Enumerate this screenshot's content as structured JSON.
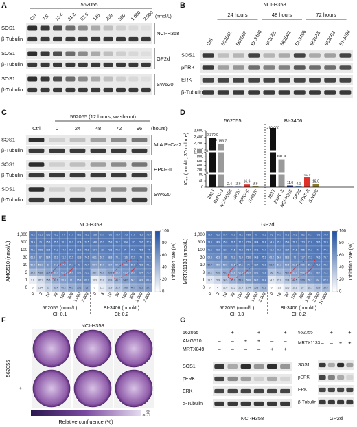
{
  "panel_a": {
    "letter": "A",
    "drug": "562055",
    "unit": "(nmol/L)",
    "lanes": [
      "Ctrl",
      "7.8",
      "15.6",
      "31.3",
      "62.5",
      "125",
      "250",
      "500",
      "1,000",
      "2,000"
    ],
    "blots": [
      {
        "cell_line": "NCI-H358",
        "proteins": [
          "SOS1",
          "β-Tubulin"
        ]
      },
      {
        "cell_line": "GP2d",
        "proteins": [
          "SOS1",
          "β-Tubulin"
        ]
      },
      {
        "cell_line": "SW620",
        "proteins": [
          "SOS1",
          "β-Tubulin"
        ]
      }
    ]
  },
  "panel_b": {
    "letter": "B",
    "cell_line": "NCI-H358",
    "groups": [
      "24 hours",
      "48 hours",
      "72 hours"
    ],
    "lanes": [
      "Ctrl",
      "562055",
      "562092",
      "BI-3406",
      "562055",
      "562092",
      "BI-3406",
      "562055",
      "562092",
      "BI-3406"
    ],
    "proteins": [
      "SOS1",
      "pERK",
      "ERK",
      "β-Tubulin"
    ]
  },
  "panel_c": {
    "letter": "C",
    "header": "562055 (12 hours, wash-out)",
    "unit": "(hours)",
    "lanes": [
      "Ctrl",
      "0",
      "24",
      "48",
      "72",
      "96"
    ],
    "blots": [
      {
        "cell_line": "MIA PaCa-2",
        "proteins": [
          "SOS1",
          "β-Tubulin"
        ]
      },
      {
        "cell_line": "HPAF-II",
        "proteins": [
          "SOS1",
          "β-Tubulin"
        ]
      },
      {
        "cell_line": "SW620",
        "proteins": [
          "SOS1",
          "β-Tubulin"
        ]
      }
    ]
  },
  "panel_d": {
    "letter": "D",
    "type": "bar",
    "ylabel": "IC₅₀ (nmol/L, 3D culture)",
    "segments": [
      {
        "ylim": [
          0,
          80
        ],
        "yticks": [
          0,
          40,
          80
        ]
      },
      {
        "ylim": [
          100,
          1000
        ],
        "yticks": [
          200,
          400,
          600,
          800,
          {
            "value": 1000,
            "label": "1,000"
          }
        ]
      },
      {
        "ylim": [
          2000,
          2600
        ],
        "yticks": [
          {
            "value": 2000,
            "label": "2,000"
          },
          {
            "value": 2200,
            "label": "2,200"
          },
          {
            "value": 2400,
            "label": "2,400"
          },
          {
            "value": 2600,
            "label": "2,600"
          }
        ]
      }
    ],
    "groups": [
      {
        "title": "562055",
        "categories": [
          "293T",
          "BxPC-3",
          "NCI-H358",
          "GP2d",
          "HPAF-II",
          "SW620"
        ],
        "colors": [
          "#111111",
          "#9a9a9a",
          "#1b2a7a",
          "#5b8fc9",
          "#e0302a",
          "#8a7a2a"
        ],
        "values": [
          2370.0,
          2193.7,
          2.4,
          2.9,
          16.9,
          3.9
        ],
        "value_labels": [
          "2,370.0",
          "2,193.7",
          "2.4",
          "2.9",
          "16.9",
          "3.9"
        ]
      },
      {
        "title": "BI-3406",
        "categories": [
          "293T",
          "BxPC-3",
          "NCI-H358",
          "GP2d",
          "HPAF-II",
          "SW620"
        ],
        "colors": [
          "#111111",
          "#9a9a9a",
          "#1b2a7a",
          "#5b8fc9",
          "#e0302a",
          "#8a7a2a"
        ],
        "values": [
          10000,
          691.9,
          11.0,
          4.1,
          61.9,
          18.0
        ],
        "value_labels": [
          ">10,000",
          "691.9",
          "11.0",
          "4.1",
          "61.9",
          "18.0"
        ]
      }
    ]
  },
  "panel_e": {
    "letter": "E",
    "colorbar_label": "Inhibition rate (%)",
    "colorbar_lim": [
      0,
      100
    ],
    "colorbar_ticks": [
      0,
      20,
      40,
      60,
      80,
      100
    ],
    "heatmaps": [
      {
        "title": "NCI-H358",
        "ylabel": "AMG510 (nmol/L)",
        "rows": [
          "1,000",
          "300",
          "100",
          "30",
          "10",
          "3",
          "1",
          "0"
        ],
        "drugs": [
          {
            "name": "562055 (nmol/L)",
            "ci": "CI: 0.1",
            "columns": [
              "0",
              "3",
              "10",
              "30",
              "100",
              "300",
              "1,000",
              "3,000"
            ]
          },
          {
            "name": "BI-3406 (nmol/L)",
            "ci": "CI: 0.2",
            "columns": [
              "0",
              "3",
              "10",
              "30",
              "100",
              "300",
              "1,000",
              "3,000"
            ]
          }
        ],
        "values": [
          [
            75.2,
            75.1,
            76.6,
            76.5,
            77.0,
            77.9,
            78.1,
            78.3,
            75.6,
            75.9,
            76.2,
            76.6,
            77.3,
            77.8,
            78.2,
            78.6
          ],
          [
            74.6,
            74.0,
            75.5,
            75.6,
            76.1,
            76.9,
            77.4,
            77.5,
            74.8,
            75.5,
            75.8,
            76.2,
            76.4,
            77.0,
            77.6,
            77.9
          ],
          [
            72.1,
            72.8,
            73.5,
            74.2,
            74.9,
            75.6,
            76.2,
            76.8,
            72.4,
            73.0,
            73.6,
            74.3,
            75.0,
            75.8,
            76.5,
            77.0
          ],
          [
            66.3,
            67.0,
            68.4,
            69.9,
            71.2,
            72.5,
            73.8,
            74.6,
            66.1,
            67.5,
            68.8,
            70.1,
            71.6,
            72.9,
            74.0,
            75.2
          ],
          [
            56.8,
            58.1,
            61.0,
            64.2,
            67.5,
            70.1,
            72.0,
            73.4,
            55.4,
            57.9,
            60.7,
            63.9,
            66.8,
            69.5,
            71.8,
            73.1
          ],
          [
            39.6,
            43.8,
            52.4,
            57.7,
            62.9,
            66.8,
            70.2,
            72.5,
            38.7,
            42.6,
            50.9,
            56.3,
            61.5,
            65.8,
            69.4,
            71.9
          ],
          [
            9.6,
            20.1,
            35.5,
            47.1,
            55.4,
            61.0,
            65.8,
            69.3,
            10.3,
            19.8,
            33.9,
            45.7,
            54.2,
            60.1,
            64.9,
            68.6
          ],
          [
            0,
            13.4,
            25.0,
            32.4,
            40.2,
            46.2,
            50.1,
            53.0,
            0,
            11.1,
            22.9,
            31.5,
            39.8,
            46.9,
            51.2,
            54.7
          ]
        ]
      },
      {
        "title": "GP2d",
        "ylabel": "MRTX1133 (nmol/L)",
        "rows": [
          "1,000",
          "300",
          "100",
          "30",
          "10",
          "3",
          "1",
          "0"
        ],
        "drugs": [
          {
            "name": "562055 (nmol/L)",
            "ci": "CI: 0.3",
            "columns": [
              "0",
              "3",
              "10",
              "30",
              "100",
              "300",
              "1,000",
              "3,000"
            ]
          },
          {
            "name": "BI-3406 (nmol/L)",
            "ci": "CI: 0.2",
            "columns": [
              "0",
              "10",
              "30",
              "100",
              "300",
              "1,000",
              "3,000",
              "10,000"
            ]
          }
        ],
        "values": [
          [
            75.9,
            76.2,
            77.4,
            77.9,
            78.1,
            78.8,
            79.0,
            79.3,
            76.0,
            76.5,
            77.1,
            77.6,
            78.2,
            78.7,
            79.1,
            79.5
          ],
          [
            74.3,
            74.9,
            75.8,
            76.6,
            77.2,
            77.9,
            78.4,
            78.8,
            74.6,
            75.2,
            75.9,
            76.7,
            77.3,
            77.8,
            78.5,
            78.9
          ],
          [
            71.5,
            72.2,
            73.6,
            74.5,
            75.3,
            76.4,
            77.1,
            77.7,
            71.9,
            72.6,
            73.4,
            74.6,
            75.5,
            76.3,
            77.0,
            77.6
          ],
          [
            64.8,
            66.3,
            68.0,
            70.2,
            71.9,
            73.6,
            74.8,
            75.9,
            65.2,
            66.6,
            68.3,
            70.0,
            71.7,
            73.3,
            74.6,
            75.7
          ],
          [
            52.7,
            55.9,
            59.8,
            63.6,
            67.1,
            70.0,
            72.4,
            73.9,
            53.4,
            56.2,
            59.5,
            63.1,
            66.6,
            69.7,
            71.9,
            73.5
          ],
          [
            35.1,
            40.6,
            49.2,
            55.8,
            61.4,
            65.9,
            69.1,
            71.8,
            36.0,
            41.3,
            48.7,
            55.1,
            60.8,
            65.2,
            68.7,
            71.2
          ],
          [
            13.7,
            21.9,
            34.5,
            45.3,
            53.6,
            59.8,
            64.7,
            68.4,
            14.2,
            22.6,
            33.8,
            44.5,
            52.9,
            59.1,
            64.0,
            67.8
          ],
          [
            0,
            4.0,
            12.6,
            15.5,
            22.9,
            27.4,
            35.8,
            41.2,
            0,
            3.5,
            13.6,
            19.9,
            24.0,
            28.1,
            33.9,
            39.4
          ]
        ]
      }
    ]
  },
  "panel_f": {
    "letter": "F",
    "title": "NCI-H358",
    "columns": [
      "–",
      "AMG510",
      "MRTX849"
    ],
    "row_label": "562055",
    "rows": [
      "–",
      "+"
    ],
    "colorbar_label": "Relative confluence (%)",
    "colorbar_ends": [
      "0",
      "100"
    ]
  },
  "panel_g": {
    "letter": "G",
    "left": {
      "cell_line": "NCI-H358",
      "treatments": [
        {
          "name": "562055",
          "signs": [
            "–",
            "+",
            "–",
            "+",
            "–",
            "+"
          ]
        },
        {
          "name": "AMG510",
          "signs": [
            "–",
            "–",
            "+",
            "+",
            "–",
            "–"
          ]
        },
        {
          "name": "MRTX849",
          "signs": [
            "–",
            "–",
            "–",
            "–",
            "+",
            "+"
          ]
        }
      ],
      "proteins": [
        "SOS1",
        "pERK",
        "ERK",
        "α-Tubulin"
      ]
    },
    "right": {
      "cell_line": "GP2d",
      "treatments": [
        {
          "name": "562055",
          "signs": [
            "–",
            "+",
            "–",
            "+"
          ]
        },
        {
          "name": "MRTX1133",
          "signs": [
            "–",
            "–",
            "+",
            "+"
          ]
        }
      ],
      "proteins": [
        "SOS1",
        "pERK",
        "ERK",
        "β-Tubulin"
      ]
    }
  }
}
